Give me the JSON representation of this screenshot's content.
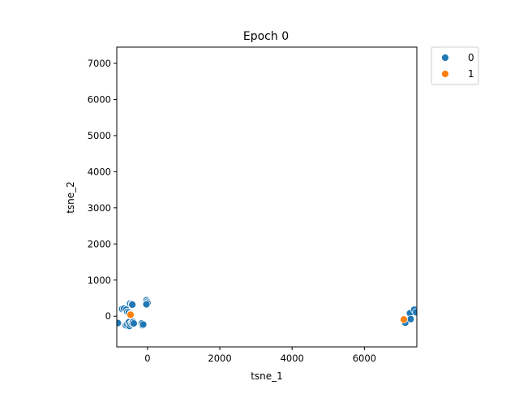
{
  "chart_data": {
    "type": "scatter",
    "title": "Epoch 0",
    "xlabel": "tsne_1",
    "ylabel": "tsne_2",
    "xlim": [
      -850,
      7450
    ],
    "ylim": [
      -850,
      7450
    ],
    "xticks": [
      0,
      2000,
      4000,
      6000
    ],
    "yticks": [
      0,
      1000,
      2000,
      3000,
      4000,
      5000,
      6000,
      7000
    ],
    "grid": false,
    "legend": {
      "placement": "outside-top-right"
    },
    "series": [
      {
        "name": "0",
        "color": "#1f77b4",
        "points": [
          [
            -700,
            200
          ],
          [
            -650,
            210
          ],
          [
            -590,
            180
          ],
          [
            -560,
            120
          ],
          [
            -520,
            100
          ],
          [
            -480,
            350
          ],
          [
            -430,
            340
          ],
          [
            -420,
            320
          ],
          [
            -470,
            60
          ],
          [
            -30,
            440
          ],
          [
            -10,
            400
          ],
          [
            0,
            360
          ],
          [
            -30,
            330
          ],
          [
            -820,
            -190
          ],
          [
            -600,
            -250
          ],
          [
            -560,
            -230
          ],
          [
            -520,
            -170
          ],
          [
            -500,
            -270
          ],
          [
            -470,
            -210
          ],
          [
            -430,
            -180
          ],
          [
            -400,
            -160
          ],
          [
            -380,
            -200
          ],
          [
            -160,
            -200
          ],
          [
            -140,
            -250
          ],
          [
            -120,
            -230
          ],
          [
            7130,
            -180
          ],
          [
            7260,
            80
          ],
          [
            7280,
            -80
          ],
          [
            7380,
            180
          ],
          [
            7430,
            110
          ]
        ]
      },
      {
        "name": "1",
        "color": "#ff7f0e",
        "points": [
          [
            -470,
            40
          ],
          [
            7090,
            -90
          ]
        ]
      }
    ]
  }
}
